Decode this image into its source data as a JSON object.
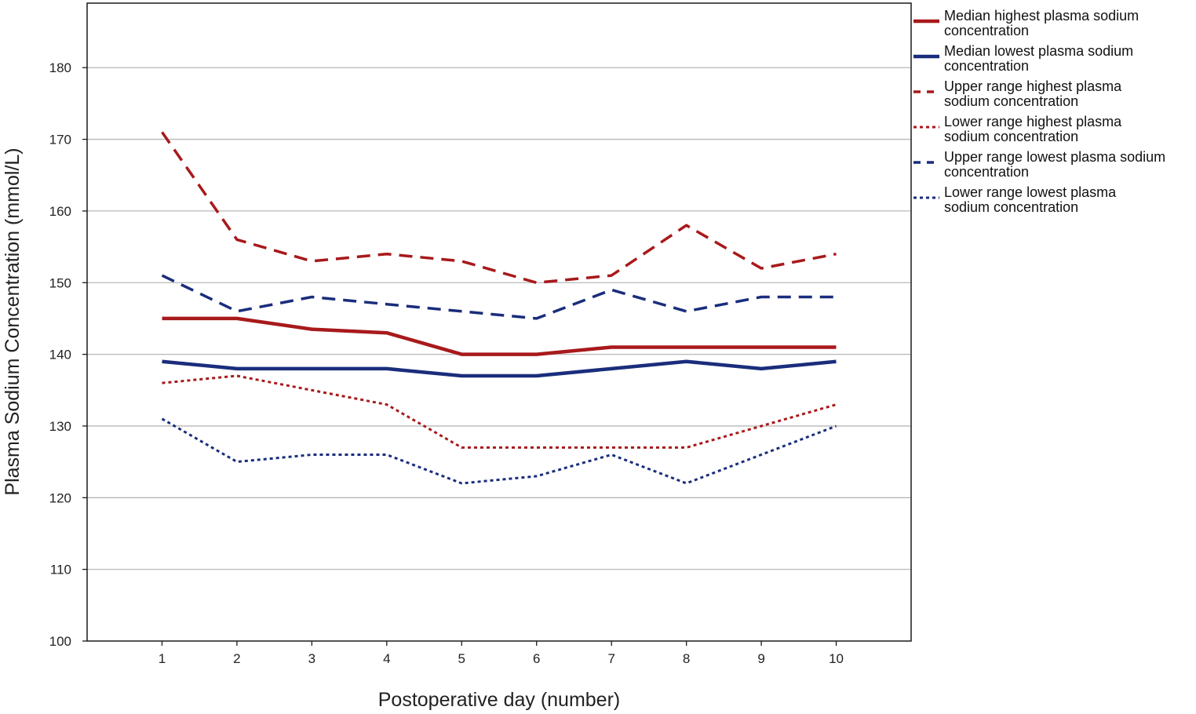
{
  "chart_data": {
    "type": "line",
    "title": "",
    "xlabel": "Postoperative day (number)",
    "ylabel": "Plasma Sodium Concentration (mmol/L)",
    "x": [
      1,
      2,
      3,
      4,
      5,
      6,
      7,
      8,
      9,
      10
    ],
    "x_tick_labels": [
      "1",
      "2",
      "3",
      "4",
      "5",
      "6",
      "7",
      "8",
      "9",
      "10"
    ],
    "xlim": [
      0,
      11
    ],
    "ylim": [
      100,
      189
    ],
    "y_ticks": [
      100,
      110,
      120,
      130,
      140,
      150,
      160,
      170,
      180
    ],
    "y_tick_labels": [
      "100",
      "110",
      "120",
      "130",
      "140",
      "150",
      "160",
      "170",
      "180"
    ],
    "grid": "horizontal",
    "legend_position": "right",
    "series": [
      {
        "name": "Median highest plasma sodium concentration",
        "legend_lines": [
          "Median highest plasma sodium",
          "concentration"
        ],
        "color": "#a8191b",
        "style": "solid",
        "values": [
          145,
          145,
          143.5,
          143,
          140,
          140,
          141,
          141,
          141,
          141
        ]
      },
      {
        "name": "Median lowest plasma sodium concentration",
        "legend_lines": [
          "Median lowest plasma sodium",
          "concentration"
        ],
        "color": "#1a2d7c",
        "style": "solid",
        "values": [
          139,
          138,
          138,
          138,
          137,
          137,
          138,
          139,
          138,
          139
        ]
      },
      {
        "name": "Upper range highest plasma sodium concentration",
        "legend_lines": [
          "Upper range highest plasma",
          "sodium concentration"
        ],
        "color": "#a8191b",
        "style": "dashed",
        "values": [
          171,
          156,
          153,
          154,
          153,
          150,
          151,
          158,
          152,
          154
        ]
      },
      {
        "name": "Lower range highest plasma sodium concentration",
        "legend_lines": [
          "Lower range highest plasma",
          "sodium concentration"
        ],
        "color": "#a8191b",
        "style": "dotted",
        "values": [
          136,
          137,
          135,
          133,
          127,
          127,
          127,
          127,
          130,
          133
        ]
      },
      {
        "name": "Upper range lowest plasma sodium concentration",
        "legend_lines": [
          "Upper range lowest plasma sodium",
          "concentration"
        ],
        "color": "#1a2d7c",
        "style": "dashed",
        "values": [
          151,
          146,
          148,
          147,
          146,
          145,
          149,
          146,
          148,
          148
        ]
      },
      {
        "name": "Lower range lowest plasma sodium concentration",
        "legend_lines": [
          "Lower range lowest plasma",
          "sodium concentration"
        ],
        "color": "#1a2d7c",
        "style": "dotted",
        "values": [
          131,
          125,
          126,
          126,
          122,
          123,
          126,
          122,
          126,
          130
        ]
      }
    ]
  }
}
